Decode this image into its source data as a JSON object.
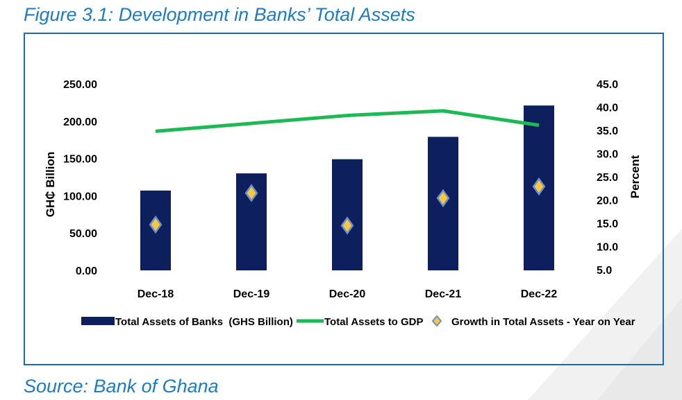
{
  "page": {
    "figure_title": "Figure 3.1: Development in Banks’ Total Assets",
    "source": "Source: Bank of Ghana"
  },
  "colors": {
    "accent": "#1f7bbf",
    "frame": "#1f6aa5",
    "bar": "#0d1f5c",
    "line": "#1db954",
    "marker_fill": "#f5c842",
    "marker_stroke": "#6e8fc9",
    "watermark": "#f2f2f2"
  },
  "chart_data": {
    "type": "bar",
    "categories": [
      "Dec-18",
      "Dec-19",
      "Dec-20",
      "Dec-21",
      "Dec-22"
    ],
    "series": [
      {
        "name": "Total Assets of Banks  (GHS Billion)",
        "type": "bar",
        "axis": "left",
        "values": [
          107.0,
          130.0,
          149.0,
          179.0,
          221.0
        ]
      },
      {
        "name": "Total Assets to GDP",
        "type": "line",
        "axis": "right",
        "values": [
          34.8,
          36.5,
          38.2,
          39.2,
          36.1
        ]
      },
      {
        "name": "Growth in Total Assets - Year on Year",
        "type": "scatter",
        "marker": "diamond",
        "axis": "right",
        "values": [
          14.7,
          21.5,
          14.5,
          20.4,
          22.9
        ]
      }
    ],
    "ylabel": "GH₵ Billion",
    "y2label": "Percent",
    "xlabel": "",
    "ylim": [
      0,
      250
    ],
    "y2lim": [
      5,
      45
    ],
    "yticks": [
      "0.00",
      "50.00",
      "100.00",
      "150.00",
      "200.00",
      "250.00"
    ],
    "y2ticks": [
      "5.0",
      "10.0",
      "15.0",
      "20.0",
      "25.0",
      "30.0",
      "35.0",
      "40.0",
      "45.0"
    ],
    "grid": false,
    "legend_position": "bottom"
  }
}
